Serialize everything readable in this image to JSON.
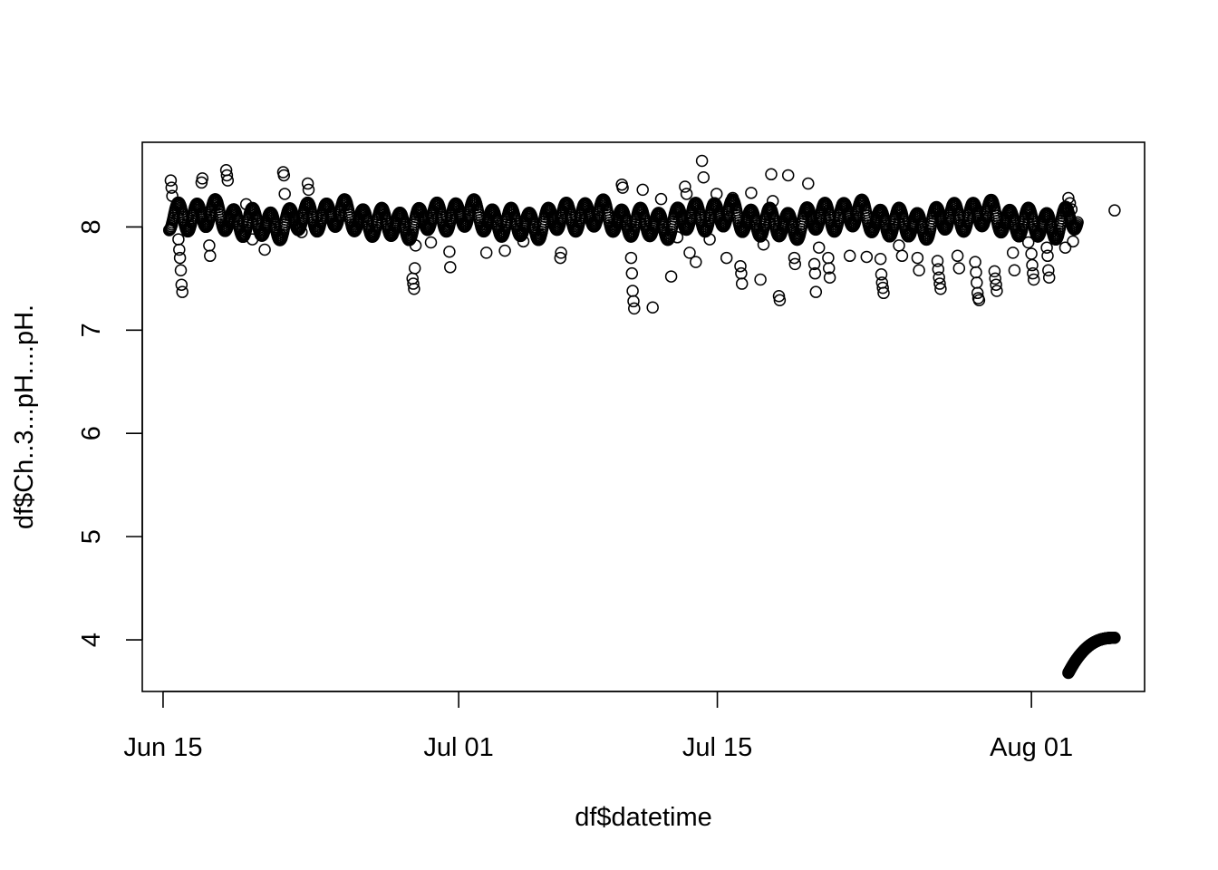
{
  "chart_data": {
    "type": "scatter",
    "title": "",
    "xlabel": "df$datetime",
    "ylabel": "df$Ch..3...pH....pH.",
    "x_ticks": [
      {
        "date": "2019-06-15",
        "label": "Jun 15"
      },
      {
        "date": "2019-07-01",
        "label": "Jul 01"
      },
      {
        "date": "2019-07-15",
        "label": "Jul 15"
      },
      {
        "date": "2019-08-01",
        "label": "Aug 01"
      }
    ],
    "y_ticks": [
      4,
      5,
      6,
      7,
      8
    ],
    "xlim": [
      "2019-06-13T21:00",
      "2019-08-07T03:00"
    ],
    "ylim": [
      3.5,
      8.82
    ],
    "marker": "open-circle",
    "grid": false,
    "legend": "none",
    "series": [
      {
        "main_band": {
          "x_start": "2019-06-15T08:00",
          "x_end": "2019-08-03T12:00",
          "center": 8.07,
          "half_width": 0.13
        },
        "bottom_cluster": {
          "x_start": "2019-08-03T00:00",
          "x_end": "2019-08-05T12:00",
          "y_start": 3.68,
          "y_end": 4.02
        },
        "points": [
          [
            "2019-06-15T10:00",
            8.45
          ],
          [
            "2019-06-15T11:00",
            8.38
          ],
          [
            "2019-06-15T12:00",
            8.3
          ],
          [
            "2019-06-15T20:00",
            7.88
          ],
          [
            "2019-06-15T21:00",
            7.78
          ],
          [
            "2019-06-15T22:00",
            7.7
          ],
          [
            "2019-06-15T23:00",
            7.58
          ],
          [
            "2019-06-16T00:00",
            7.44
          ],
          [
            "2019-06-16T01:00",
            7.37
          ],
          [
            "2019-06-17T02:00",
            8.43
          ],
          [
            "2019-06-17T03:00",
            8.47
          ],
          [
            "2019-06-17T12:00",
            7.82
          ],
          [
            "2019-06-17T13:00",
            7.72
          ],
          [
            "2019-06-18T10:00",
            8.55
          ],
          [
            "2019-06-18T11:00",
            8.5
          ],
          [
            "2019-06-18T12:00",
            8.45
          ],
          [
            "2019-06-19T12:00",
            8.22
          ],
          [
            "2019-06-19T20:00",
            7.88
          ],
          [
            "2019-06-20T12:00",
            7.78
          ],
          [
            "2019-06-21T12:00",
            8.53
          ],
          [
            "2019-06-21T13:00",
            8.5
          ],
          [
            "2019-06-21T14:00",
            8.32
          ],
          [
            "2019-06-22T12:00",
            7.95
          ],
          [
            "2019-06-22T20:00",
            8.42
          ],
          [
            "2019-06-22T21:00",
            8.36
          ],
          [
            "2019-06-28T12:00",
            7.5
          ],
          [
            "2019-06-28T13:00",
            7.45
          ],
          [
            "2019-06-28T14:00",
            7.4
          ],
          [
            "2019-06-28T15:00",
            7.6
          ],
          [
            "2019-06-28T16:00",
            7.82
          ],
          [
            "2019-06-29T12:00",
            7.85
          ],
          [
            "2019-06-30T12:00",
            7.76
          ],
          [
            "2019-06-30T13:00",
            7.61
          ],
          [
            "2019-07-02T12:00",
            7.75
          ],
          [
            "2019-07-03T12:00",
            7.77
          ],
          [
            "2019-07-04T12:00",
            7.86
          ],
          [
            "2019-07-06T12:00",
            7.7
          ],
          [
            "2019-07-06T13:00",
            7.75
          ],
          [
            "2019-07-09T20:00",
            8.41
          ],
          [
            "2019-07-09T21:00",
            8.38
          ],
          [
            "2019-07-10T08:00",
            7.7
          ],
          [
            "2019-07-10T09:00",
            7.55
          ],
          [
            "2019-07-10T10:00",
            7.38
          ],
          [
            "2019-07-10T11:00",
            7.28
          ],
          [
            "2019-07-10T12:00",
            7.21
          ],
          [
            "2019-07-10T23:00",
            8.36
          ],
          [
            "2019-07-11T12:00",
            7.22
          ],
          [
            "2019-07-11T23:00",
            8.27
          ],
          [
            "2019-07-12T12:00",
            7.52
          ],
          [
            "2019-07-12T20:00",
            7.9
          ],
          [
            "2019-07-13T06:00",
            8.39
          ],
          [
            "2019-07-13T08:00",
            8.32
          ],
          [
            "2019-07-13T12:00",
            7.75
          ],
          [
            "2019-07-13T20:00",
            7.66
          ],
          [
            "2019-07-14T04:00",
            8.64
          ],
          [
            "2019-07-14T06:00",
            8.48
          ],
          [
            "2019-07-14T14:00",
            7.88
          ],
          [
            "2019-07-14T23:00",
            8.32
          ],
          [
            "2019-07-15T12:00",
            7.7
          ],
          [
            "2019-07-15T20:00",
            8.28
          ],
          [
            "2019-07-16T06:00",
            7.62
          ],
          [
            "2019-07-16T07:00",
            7.55
          ],
          [
            "2019-07-16T08:00",
            7.45
          ],
          [
            "2019-07-16T20:00",
            8.33
          ],
          [
            "2019-07-17T08:00",
            7.49
          ],
          [
            "2019-07-17T12:00",
            7.83
          ],
          [
            "2019-07-17T22:00",
            8.51
          ],
          [
            "2019-07-18T00:00",
            8.25
          ],
          [
            "2019-07-18T08:00",
            7.33
          ],
          [
            "2019-07-18T09:00",
            7.29
          ],
          [
            "2019-07-18T20:00",
            8.5
          ],
          [
            "2019-07-19T04:00",
            7.7
          ],
          [
            "2019-07-19T05:00",
            7.64
          ],
          [
            "2019-07-19T22:00",
            8.42
          ],
          [
            "2019-07-20T06:00",
            7.64
          ],
          [
            "2019-07-20T07:00",
            7.55
          ],
          [
            "2019-07-20T08:00",
            7.37
          ],
          [
            "2019-07-20T12:00",
            7.8
          ],
          [
            "2019-07-21T00:00",
            7.7
          ],
          [
            "2019-07-21T01:00",
            7.6
          ],
          [
            "2019-07-21T02:00",
            7.51
          ],
          [
            "2019-07-22T04:00",
            7.72
          ],
          [
            "2019-07-23T02:00",
            7.71
          ],
          [
            "2019-07-23T20:00",
            7.69
          ],
          [
            "2019-07-23T21:00",
            7.54
          ],
          [
            "2019-07-23T22:00",
            7.46
          ],
          [
            "2019-07-23T23:00",
            7.41
          ],
          [
            "2019-07-24T00:00",
            7.36
          ],
          [
            "2019-07-24T20:00",
            7.82
          ],
          [
            "2019-07-25T00:00",
            7.72
          ],
          [
            "2019-07-25T20:00",
            7.7
          ],
          [
            "2019-07-25T22:00",
            7.58
          ],
          [
            "2019-07-26T22:00",
            7.67
          ],
          [
            "2019-07-26T23:00",
            7.59
          ],
          [
            "2019-07-27T00:00",
            7.51
          ],
          [
            "2019-07-27T01:00",
            7.45
          ],
          [
            "2019-07-27T02:00",
            7.4
          ],
          [
            "2019-07-28T00:00",
            7.72
          ],
          [
            "2019-07-28T02:00",
            7.6
          ],
          [
            "2019-07-28T23:00",
            7.66
          ],
          [
            "2019-07-29T00:00",
            7.56
          ],
          [
            "2019-07-29T01:00",
            7.46
          ],
          [
            "2019-07-29T02:00",
            7.36
          ],
          [
            "2019-07-29T03:00",
            7.31
          ],
          [
            "2019-07-29T04:00",
            7.29
          ],
          [
            "2019-07-30T00:00",
            7.57
          ],
          [
            "2019-07-30T01:00",
            7.5
          ],
          [
            "2019-07-30T02:00",
            7.44
          ],
          [
            "2019-07-30T03:00",
            7.38
          ],
          [
            "2019-07-31T00:00",
            7.75
          ],
          [
            "2019-07-31T02:00",
            7.58
          ],
          [
            "2019-07-31T20:00",
            7.85
          ],
          [
            "2019-08-01T00:00",
            7.74
          ],
          [
            "2019-08-01T01:00",
            7.63
          ],
          [
            "2019-08-01T02:00",
            7.55
          ],
          [
            "2019-08-01T03:00",
            7.49
          ],
          [
            "2019-08-01T20:00",
            7.8
          ],
          [
            "2019-08-01T21:00",
            7.72
          ],
          [
            "2019-08-01T22:00",
            7.58
          ],
          [
            "2019-08-01T23:00",
            7.51
          ],
          [
            "2019-08-02T20:00",
            7.8
          ],
          [
            "2019-08-03T00:00",
            8.28
          ],
          [
            "2019-08-03T02:00",
            8.23
          ],
          [
            "2019-08-03T04:00",
            8.17
          ],
          [
            "2019-08-03T06:00",
            7.86
          ],
          [
            "2019-08-05T12:00",
            8.16
          ]
        ]
      }
    ]
  }
}
